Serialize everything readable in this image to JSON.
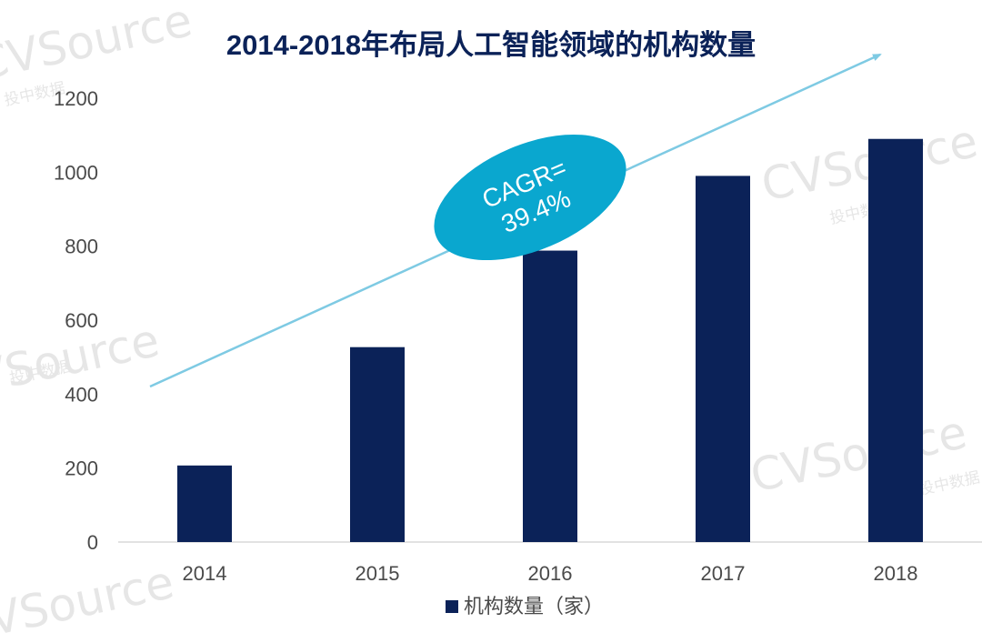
{
  "chart_data": {
    "type": "bar",
    "title": "2014-2018年布局人工智能领域的机构数量",
    "categories": [
      "2014",
      "2015",
      "2016",
      "2017",
      "2018"
    ],
    "series": [
      {
        "name": "机构数量（家）",
        "values": [
          207,
          527,
          788,
          990,
          1090
        ]
      }
    ],
    "ylim": [
      0,
      1200
    ],
    "yticks": [
      "0",
      "200",
      "400",
      "600",
      "800",
      "1000",
      "1200"
    ],
    "xlabel": "",
    "ylabel": "",
    "grid": false,
    "legend_position": "bottom-center",
    "annotation": {
      "line1": "CAGR=",
      "line2": "39.4%"
    },
    "watermarks": [
      "CVSource",
      "投中数据"
    ],
    "colors": {
      "bar": "#0B2258",
      "title": "#0B2258",
      "axis_text": "#4A4A4A",
      "arrow": "#7ECAE3",
      "ellipse": "#0AA7CF",
      "ellipse_text": "#FFFFFF",
      "watermark": "#D9D9D9"
    }
  }
}
